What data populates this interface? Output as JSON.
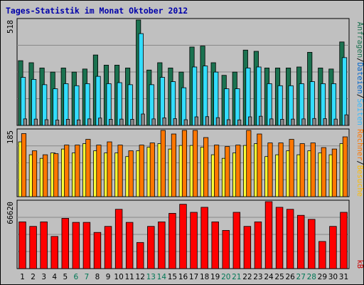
{
  "title": "Tages-Statistik im Monat Oktober 2012",
  "colors": {
    "frame_bg": "#C0C0C0",
    "plot_bg": "#C0C0C0",
    "border": "#000000",
    "title": "#0000AA",
    "weekday_label": "#000000",
    "weekend_label": "#007755",
    "anfragen": "#1B7250",
    "dateien": "#33DDFF",
    "seiten": "#FFFF33",
    "besuche": "#FF9900",
    "rechner": "#FF7700",
    "kb": "#FF0000",
    "kb_label": "#CC0000"
  },
  "chart_data": [
    {
      "type": "bar",
      "panel": "hits",
      "ymax_label": "518",
      "ylim": [
        0,
        518
      ],
      "grid": true,
      "legend_right": [
        {
          "text": "Anfragen",
          "color": "#1B7250"
        },
        {
          "text": "/",
          "color": "#000000"
        },
        {
          "text": "Dateien",
          "color": "#0066CC"
        },
        {
          "text": "/",
          "color": "#000000"
        },
        {
          "text": "Seiten",
          "color": "#33BBFF"
        }
      ],
      "categories": [
        "1",
        "2",
        "3",
        "4",
        "5",
        "6",
        "7",
        "8",
        "9",
        "10",
        "11",
        "12",
        "13",
        "14",
        "15",
        "16",
        "17",
        "18",
        "19",
        "20",
        "21",
        "22",
        "23",
        "24",
        "25",
        "26",
        "27",
        "28",
        "29",
        "30",
        "31"
      ],
      "series": [
        {
          "name": "Anfragen",
          "values": [
            318,
            308,
            282,
            262,
            282,
            262,
            277,
            346,
            296,
            296,
            282,
            518,
            272,
            308,
            282,
            262,
            385,
            390,
            308,
            246,
            262,
            370,
            364,
            282,
            282,
            282,
            287,
            359,
            282,
            277,
            410
          ]
        },
        {
          "name": "Dateien",
          "values": [
            236,
            226,
            200,
            180,
            205,
            195,
            205,
            241,
            205,
            210,
            200,
            451,
            200,
            236,
            215,
            185,
            287,
            292,
            262,
            180,
            180,
            282,
            287,
            205,
            195,
            195,
            205,
            215,
            205,
            205,
            333
          ]
        },
        {
          "name": "Seiten",
          "values": [
            32,
            31,
            28,
            26,
            30,
            27,
            32,
            36,
            30,
            31,
            30,
            56,
            32,
            37,
            33,
            28,
            42,
            43,
            38,
            28,
            27,
            42,
            45,
            32,
            30,
            31,
            32,
            34,
            33,
            31,
            52
          ]
        }
      ]
    },
    {
      "type": "bar",
      "panel": "visits",
      "ymax_label": "185",
      "ylim": [
        0,
        185
      ],
      "grid": true,
      "legend_right": [
        {
          "text": "Rechner",
          "color": "#FF7700"
        },
        {
          "text": "/",
          "color": "#000000"
        },
        {
          "text": "Besuche",
          "color": "#FFBB00"
        }
      ],
      "series": [
        {
          "name": "Besuche",
          "values": [
            153,
            117,
            107,
            122,
            133,
            122,
            148,
            128,
            122,
            122,
            112,
            128,
            138,
            148,
            133,
            143,
            143,
            138,
            117,
            107,
            122,
            143,
            148,
            112,
            117,
            128,
            117,
            128,
            122,
            117,
            148
          ]
        },
        {
          "name": "Rechner",
          "values": [
            176,
            128,
            117,
            120,
            144,
            144,
            160,
            144,
            153,
            144,
            128,
            144,
            150,
            185,
            175,
            185,
            185,
            165,
            144,
            140,
            144,
            185,
            175,
            150,
            150,
            160,
            148,
            150,
            137,
            133,
            167
          ]
        }
      ]
    },
    {
      "type": "bar",
      "panel": "kb",
      "ymax_label": "66620",
      "ylim": [
        0,
        66620
      ],
      "grid": true,
      "legend_right": [
        {
          "text": "kB",
          "color": "#CC0000"
        }
      ],
      "series": [
        {
          "name": "kB",
          "values": [
            46500,
            42000,
            46500,
            32000,
            50000,
            46000,
            46000,
            36000,
            42000,
            59000,
            46000,
            26000,
            42000,
            46500,
            55000,
            64000,
            56000,
            61000,
            46500,
            38000,
            56000,
            42000,
            46500,
            66620,
            61000,
            59000,
            53000,
            49000,
            27000,
            42000,
            56000
          ]
        }
      ]
    }
  ]
}
